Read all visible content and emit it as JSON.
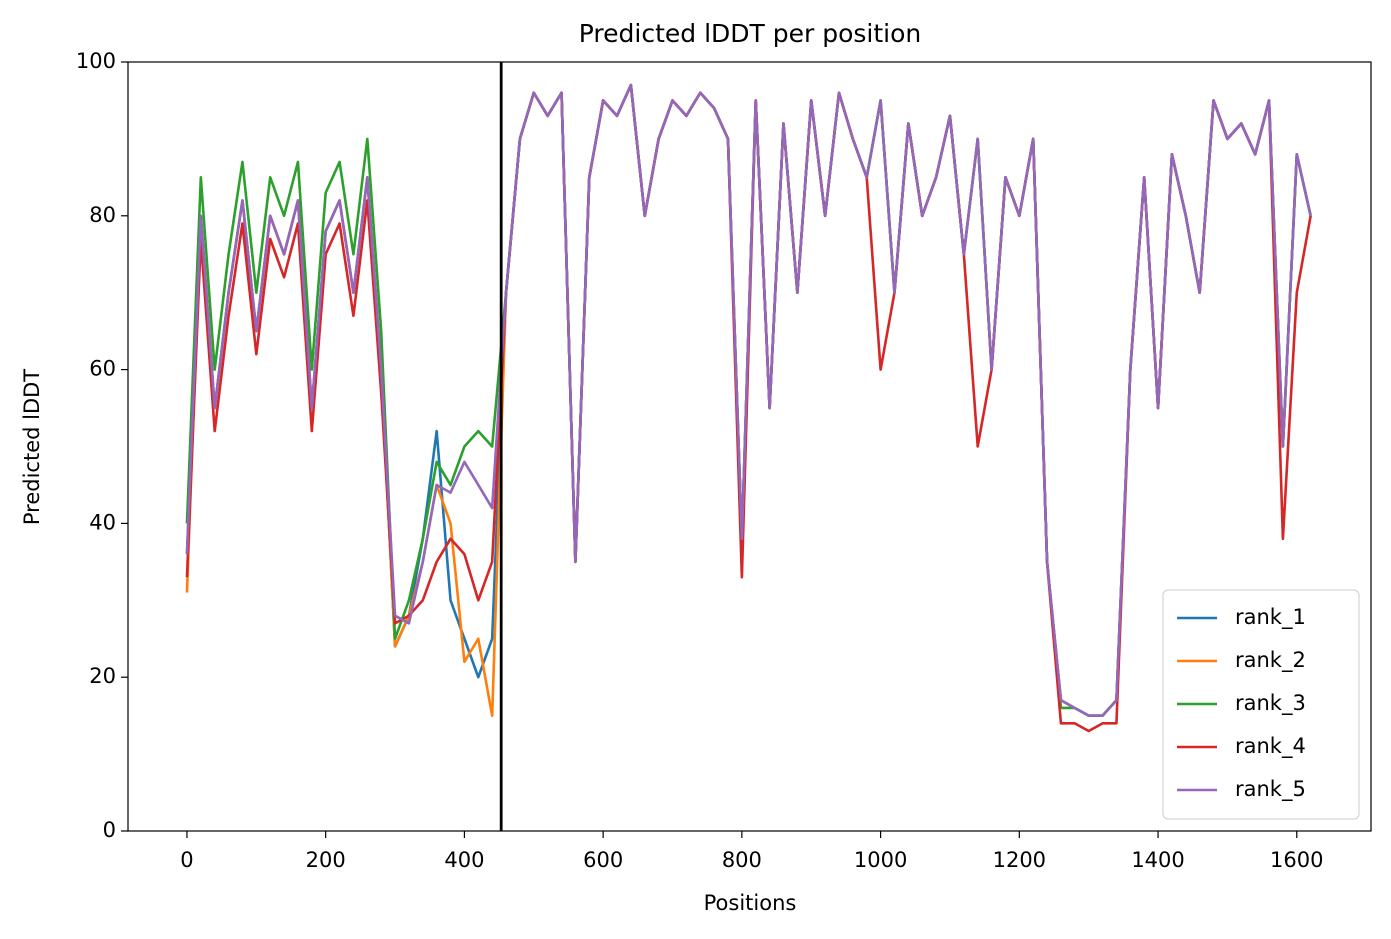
{
  "chart_data": {
    "type": "line",
    "title": "Predicted lDDT per position",
    "xlabel": "Positions",
    "ylabel": "Predicted lDDT",
    "x": [
      0,
      20,
      40,
      60,
      80,
      100,
      120,
      140,
      160,
      180,
      200,
      220,
      240,
      260,
      280,
      300,
      320,
      340,
      360,
      380,
      400,
      420,
      440,
      460,
      480,
      500,
      520,
      540,
      560,
      580,
      600,
      620,
      640,
      660,
      680,
      700,
      720,
      740,
      760,
      780,
      800,
      820,
      840,
      860,
      880,
      900,
      920,
      940,
      960,
      980,
      1000,
      1020,
      1040,
      1060,
      1080,
      1100,
      1120,
      1140,
      1160,
      1180,
      1200,
      1220,
      1240,
      1260,
      1280,
      1300,
      1320,
      1340,
      1360,
      1380,
      1400,
      1420,
      1440,
      1460,
      1480,
      1500,
      1520,
      1540,
      1560,
      1580,
      1600,
      1620
    ],
    "series": [
      {
        "name": "rank_1",
        "color": "#1f77b4",
        "values": [
          36,
          80,
          55,
          70,
          82,
          65,
          80,
          75,
          82,
          55,
          78,
          82,
          70,
          85,
          60,
          24,
          28,
          38,
          52,
          30,
          25,
          20,
          25,
          70,
          90,
          96,
          93,
          96,
          35,
          85,
          95,
          93,
          97,
          80,
          90,
          95,
          93,
          96,
          94,
          90,
          38,
          95,
          55,
          92,
          70,
          95,
          80,
          96,
          90,
          85,
          95,
          70,
          92,
          80,
          85,
          93,
          75,
          90,
          60,
          85,
          80,
          90,
          35,
          17,
          16,
          15,
          15,
          17,
          60,
          85,
          55,
          88,
          80,
          70,
          95,
          90,
          92,
          88,
          95,
          50,
          88,
          80
        ]
      },
      {
        "name": "rank_2",
        "color": "#ff7f0e",
        "values": [
          31,
          80,
          55,
          70,
          82,
          65,
          80,
          75,
          82,
          55,
          78,
          82,
          70,
          85,
          60,
          24,
          28,
          35,
          45,
          40,
          22,
          25,
          15,
          70,
          90,
          96,
          93,
          96,
          35,
          85,
          95,
          93,
          97,
          80,
          90,
          95,
          93,
          96,
          94,
          90,
          38,
          95,
          55,
          92,
          70,
          95,
          80,
          96,
          90,
          85,
          95,
          70,
          92,
          80,
          85,
          93,
          75,
          90,
          60,
          85,
          80,
          90,
          35,
          17,
          16,
          15,
          15,
          17,
          60,
          85,
          55,
          88,
          80,
          70,
          95,
          90,
          92,
          88,
          95,
          50,
          88,
          80
        ]
      },
      {
        "name": "rank_3",
        "color": "#2ca02c",
        "values": [
          40,
          85,
          60,
          75,
          87,
          70,
          85,
          80,
          87,
          60,
          83,
          87,
          75,
          90,
          65,
          25,
          30,
          38,
          48,
          45,
          50,
          52,
          50,
          70,
          90,
          96,
          93,
          96,
          35,
          85,
          95,
          93,
          97,
          80,
          90,
          95,
          93,
          96,
          94,
          90,
          38,
          95,
          55,
          92,
          70,
          95,
          80,
          96,
          90,
          85,
          95,
          70,
          92,
          80,
          85,
          93,
          75,
          90,
          60,
          85,
          80,
          90,
          35,
          16,
          16,
          15,
          15,
          17,
          60,
          85,
          55,
          88,
          80,
          70,
          95,
          90,
          92,
          88,
          95,
          50,
          88,
          80
        ]
      },
      {
        "name": "rank_4",
        "color": "#d62728",
        "values": [
          33,
          77,
          52,
          67,
          79,
          62,
          77,
          72,
          79,
          52,
          75,
          79,
          67,
          82,
          57,
          27,
          28,
          30,
          35,
          38,
          36,
          30,
          35,
          70,
          90,
          96,
          93,
          96,
          35,
          85,
          95,
          93,
          97,
          80,
          90,
          95,
          93,
          96,
          94,
          90,
          33,
          95,
          55,
          92,
          70,
          95,
          80,
          96,
          90,
          85,
          60,
          70,
          92,
          80,
          85,
          93,
          75,
          50,
          60,
          85,
          80,
          90,
          35,
          14,
          14,
          13,
          14,
          14,
          60,
          85,
          55,
          88,
          80,
          70,
          95,
          90,
          92,
          88,
          95,
          38,
          70,
          80
        ]
      },
      {
        "name": "rank_5",
        "color": "#9467bd",
        "values": [
          36,
          80,
          55,
          70,
          82,
          65,
          80,
          75,
          82,
          55,
          78,
          82,
          70,
          85,
          60,
          28,
          27,
          35,
          45,
          44,
          48,
          45,
          42,
          70,
          90,
          96,
          93,
          96,
          35,
          85,
          95,
          93,
          97,
          80,
          90,
          95,
          93,
          96,
          94,
          90,
          38,
          95,
          55,
          92,
          70,
          95,
          80,
          96,
          90,
          85,
          95,
          70,
          92,
          80,
          85,
          93,
          75,
          90,
          60,
          85,
          80,
          90,
          35,
          17,
          16,
          15,
          15,
          17,
          60,
          85,
          55,
          88,
          80,
          70,
          95,
          90,
          92,
          88,
          95,
          50,
          88,
          80
        ]
      }
    ],
    "vlines": [
      {
        "x": 453,
        "color": "#000000"
      }
    ],
    "xlim": [
      -85,
      1707
    ],
    "ylim": [
      0,
      100
    ],
    "xticks": [
      0,
      200,
      400,
      600,
      800,
      1000,
      1200,
      1400,
      1600
    ],
    "yticks": [
      0,
      20,
      40,
      60,
      80,
      100
    ],
    "legend": "lower right"
  }
}
